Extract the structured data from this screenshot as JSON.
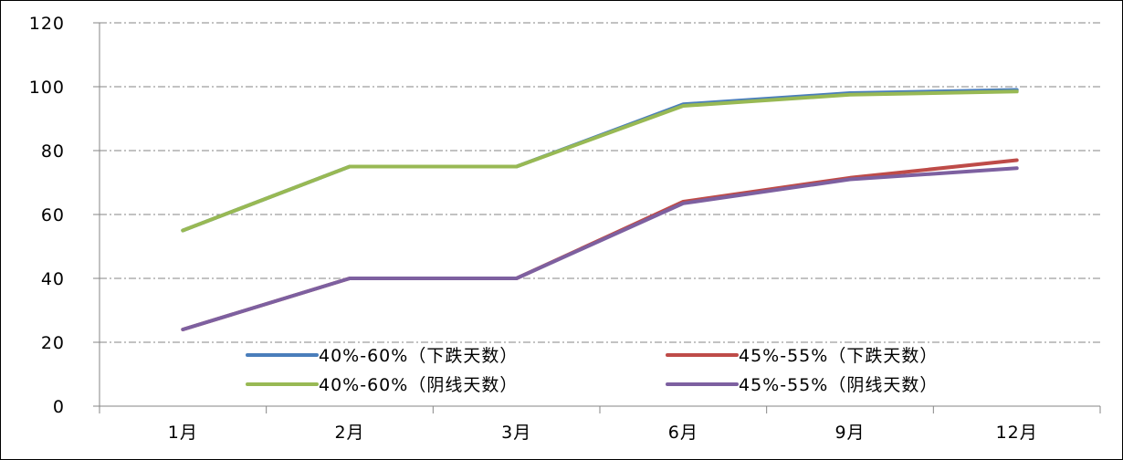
{
  "chart_data": {
    "type": "line",
    "categories": [
      "1月",
      "2月",
      "3月",
      "6月",
      "9月",
      "12月"
    ],
    "ylim": [
      0,
      120
    ],
    "yticks": [
      0,
      20,
      40,
      60,
      80,
      100,
      120
    ],
    "grid": "horizontal-dashed",
    "legend_position": "bottom-center-inside",
    "series": [
      {
        "name": "40%-60%（下跌天数）",
        "color": "#4a7ebb",
        "values": [
          55,
          75,
          75,
          94.5,
          98,
          99
        ]
      },
      {
        "name": "45%-55%（下跌天数）",
        "color": "#be4b48",
        "values": [
          24,
          40,
          40,
          64,
          71.5,
          77
        ]
      },
      {
        "name": "40%-60%（阴线天数）",
        "color": "#98b954",
        "values": [
          55,
          75,
          75,
          94,
          97.5,
          98.5
        ]
      },
      {
        "name": "45%-55%（阴线天数）",
        "color": "#7d60a0",
        "values": [
          24,
          40,
          40,
          63.5,
          71,
          74.5
        ]
      }
    ]
  }
}
